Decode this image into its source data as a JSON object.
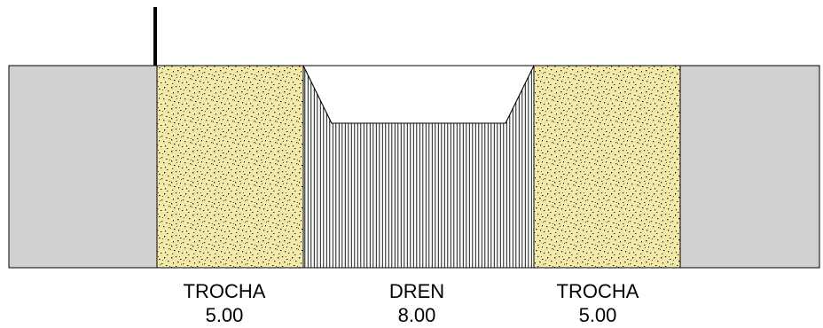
{
  "colors": {
    "road_fill": "#d0d0d0",
    "trocha_fill": "#f3e9a8",
    "trocha_speck": "#1a1a1a",
    "dren_fill": "#ffffff",
    "dren_hatch": "#000000",
    "outline": "#000000"
  },
  "sections": [
    {
      "name": "TROCHA",
      "width": "5.00"
    },
    {
      "name": "DREN",
      "width": "8.00"
    },
    {
      "name": "TROCHA",
      "width": "5.00"
    }
  ]
}
